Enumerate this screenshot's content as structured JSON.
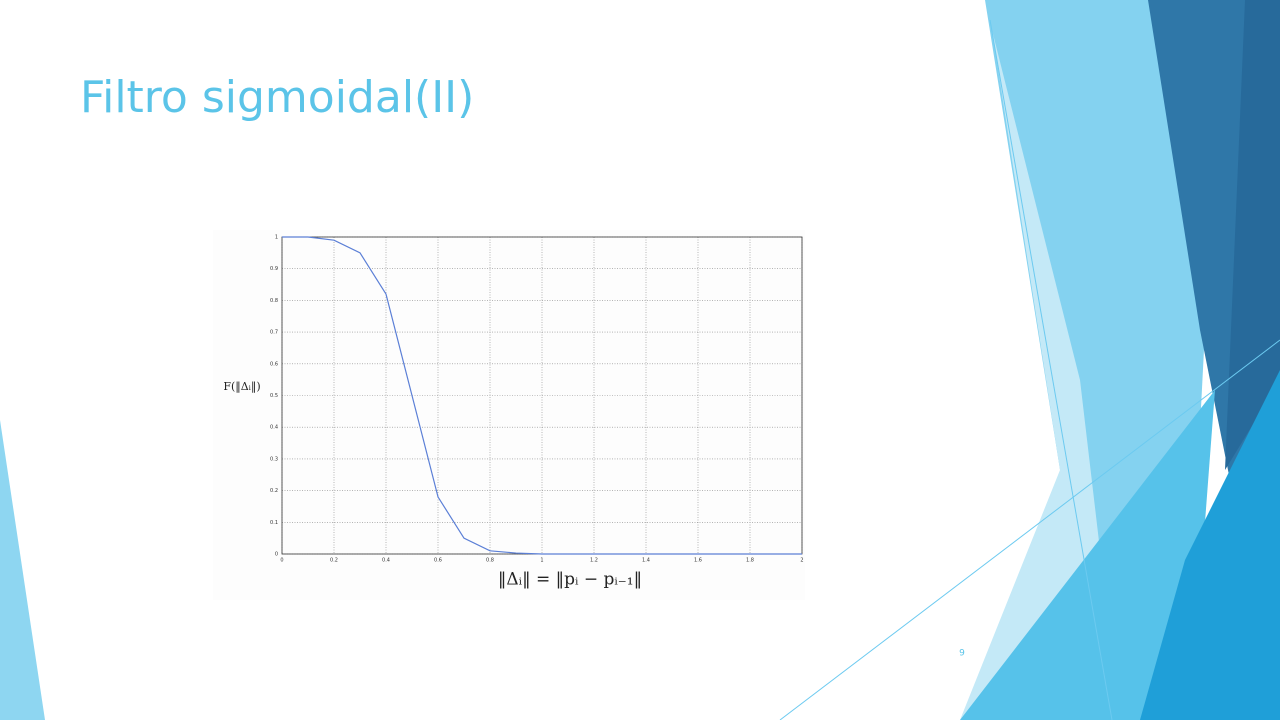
{
  "slide": {
    "title": "Filtro sigmoidal(II)",
    "page_number": "9"
  },
  "chart_data": {
    "type": "line",
    "x": [
      0,
      0.1,
      0.2,
      0.3,
      0.4,
      0.5,
      0.6,
      0.7,
      0.8,
      0.9,
      1,
      2
    ],
    "values": [
      1,
      1,
      0.99,
      0.95,
      0.82,
      0.5,
      0.18,
      0.05,
      0.01,
      0.003,
      0,
      0
    ],
    "color": "#5b7fd6",
    "xlabel": "‖Δᵢ‖ = ‖pᵢ − pᵢ₋₁‖",
    "ylabel": "F(‖Δᵢ‖)",
    "xlim": [
      0,
      2
    ],
    "xticks": [
      0,
      0.2,
      0.4,
      0.6,
      0.8,
      1,
      1.2,
      1.4,
      1.6,
      1.8,
      2
    ],
    "ylim": [
      0,
      1
    ],
    "yticks": [
      0,
      0.1,
      0.2,
      0.3,
      0.4,
      0.5,
      0.6,
      0.7,
      0.8,
      0.9,
      1
    ],
    "grid": true
  }
}
